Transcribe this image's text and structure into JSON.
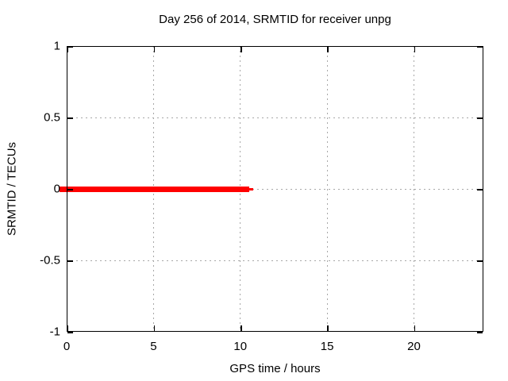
{
  "window": {
    "background": "#ffffff"
  },
  "chart_data": {
    "type": "line",
    "title": "Day 256 of 2014, SRMTID for receiver unpg",
    "xlabel": "GPS time / hours",
    "ylabel": "SRMTID / TECUs",
    "xlim": [
      0,
      24
    ],
    "ylim": [
      -1,
      1
    ],
    "xticks": [
      {
        "value": 0,
        "label": "0"
      },
      {
        "value": 5,
        "label": "5"
      },
      {
        "value": 10,
        "label": "10"
      },
      {
        "value": 15,
        "label": "15"
      },
      {
        "value": 20,
        "label": "20"
      }
    ],
    "yticks": [
      {
        "value": -1,
        "label": "-1"
      },
      {
        "value": -0.5,
        "label": "-0.5"
      },
      {
        "value": 0,
        "label": "0"
      },
      {
        "value": 0.5,
        "label": "0.5"
      },
      {
        "value": 1,
        "label": "1"
      }
    ],
    "grid": {
      "show": true,
      "style": "dotted",
      "color": "#a8a8a8"
    },
    "legend": "none",
    "colors": {
      "series": "#ff0000",
      "border": "#000000",
      "grid": "#a8a8a8",
      "background": "#ffffff",
      "text": "#000000"
    },
    "series": [
      {
        "name": "SRMTID",
        "color": "#ff0000",
        "style": "thick-line",
        "x": [
          0,
          10.5
        ],
        "y": [
          0,
          0
        ],
        "note": "constant value 0 TECUs from 0 h to about 10.5 h GPS time"
      }
    ]
  }
}
